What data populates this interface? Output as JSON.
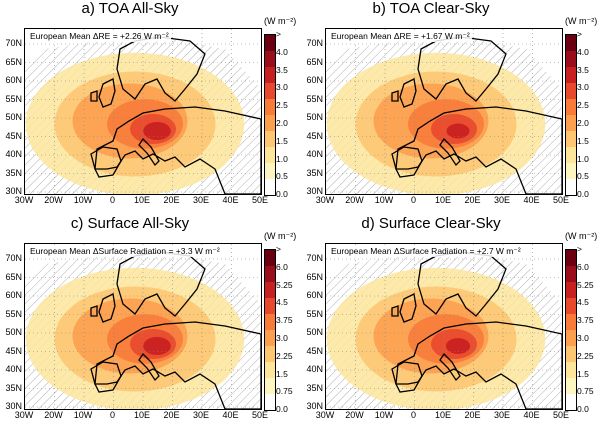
{
  "panels": [
    {
      "title": "a) TOA All-Sky",
      "mean_label": "European Mean ΔRE = +2.26 W m⁻²",
      "unit": "(W m⁻²)",
      "colorbar_ticks": [
        ">",
        "4.0",
        "3.5",
        "3.0",
        "2.5",
        "2.0",
        "1.5",
        "1.0",
        "0.5",
        "0.0"
      ],
      "intensity": 0.8
    },
    {
      "title": "b) TOA Clear-Sky",
      "mean_label": "European Mean ΔRE = +1.67 W m⁻²",
      "unit": "(W m⁻²)",
      "colorbar_ticks": [
        ">",
        "4.0",
        "3.5",
        "3.0",
        "2.5",
        "2.0",
        "1.5",
        "1.0",
        "0.5",
        "0.0"
      ],
      "intensity": 0.6
    },
    {
      "title": "c) Surface All-Sky",
      "mean_label": "European Mean ΔSurface Radiation = +3.3 W m⁻²",
      "unit": "(W m⁻²)",
      "colorbar_ticks": [
        ">",
        "6.0",
        "5.25",
        "4.5",
        "3.75",
        "3.0",
        "2.25",
        "1.5",
        "0.75",
        "0.0"
      ],
      "intensity": 0.8
    },
    {
      "title": "d) Surface Clear-Sky",
      "mean_label": "European Mean ΔSurface Radiation = +2.7 W m⁻²",
      "unit": "(W m⁻²)",
      "colorbar_ticks": [
        ">",
        "6.0",
        "5.25",
        "4.5",
        "3.75",
        "3.0",
        "2.25",
        "1.5",
        "0.75",
        "0.0"
      ],
      "intensity": 0.65
    }
  ],
  "lat_labels": [
    "70N",
    "65N",
    "60N",
    "55N",
    "50N",
    "45N",
    "40N",
    "35N",
    "30N"
  ],
  "lon_labels": [
    "30W",
    "20W",
    "10W",
    "0",
    "10E",
    "20E",
    "30E",
    "40E",
    "50E"
  ],
  "colors": {
    "colorbar": [
      "#ffffff",
      "#fdf6c0",
      "#fde59a",
      "#fdc673",
      "#fca050",
      "#f87b3a",
      "#e8492c",
      "#c81f20",
      "#9a0d1a",
      "#6a0012"
    ],
    "coast": "#000000",
    "hatch": "#9a9a9a"
  }
}
